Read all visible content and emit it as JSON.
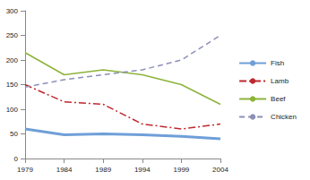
{
  "chart_data": {
    "type": "line",
    "categories": [
      "1979",
      "1984",
      "1989",
      "1994",
      "1999",
      "2004"
    ],
    "series": [
      {
        "name": "Fish",
        "color": "#6f9fd8",
        "line_style": "solid",
        "values": [
          60,
          48,
          50,
          48,
          45,
          40
        ]
      },
      {
        "name": "Lamb",
        "color": "#c0272d",
        "line_style": "dashdot",
        "values": [
          150,
          115,
          110,
          70,
          60,
          70
        ]
      },
      {
        "name": "Beef",
        "color": "#8db33a",
        "line_style": "solid",
        "values": [
          215,
          170,
          180,
          170,
          150,
          110
        ]
      },
      {
        "name": "Chicken",
        "color": "#8c8fb8",
        "line_style": "dashed",
        "values": [
          145,
          160,
          170,
          180,
          200,
          250
        ]
      }
    ],
    "ylim": [
      0,
      300
    ],
    "yticks": [
      0,
      50,
      100,
      150,
      200,
      250,
      300
    ],
    "grid": false,
    "legend": "right",
    "marker": "none"
  }
}
